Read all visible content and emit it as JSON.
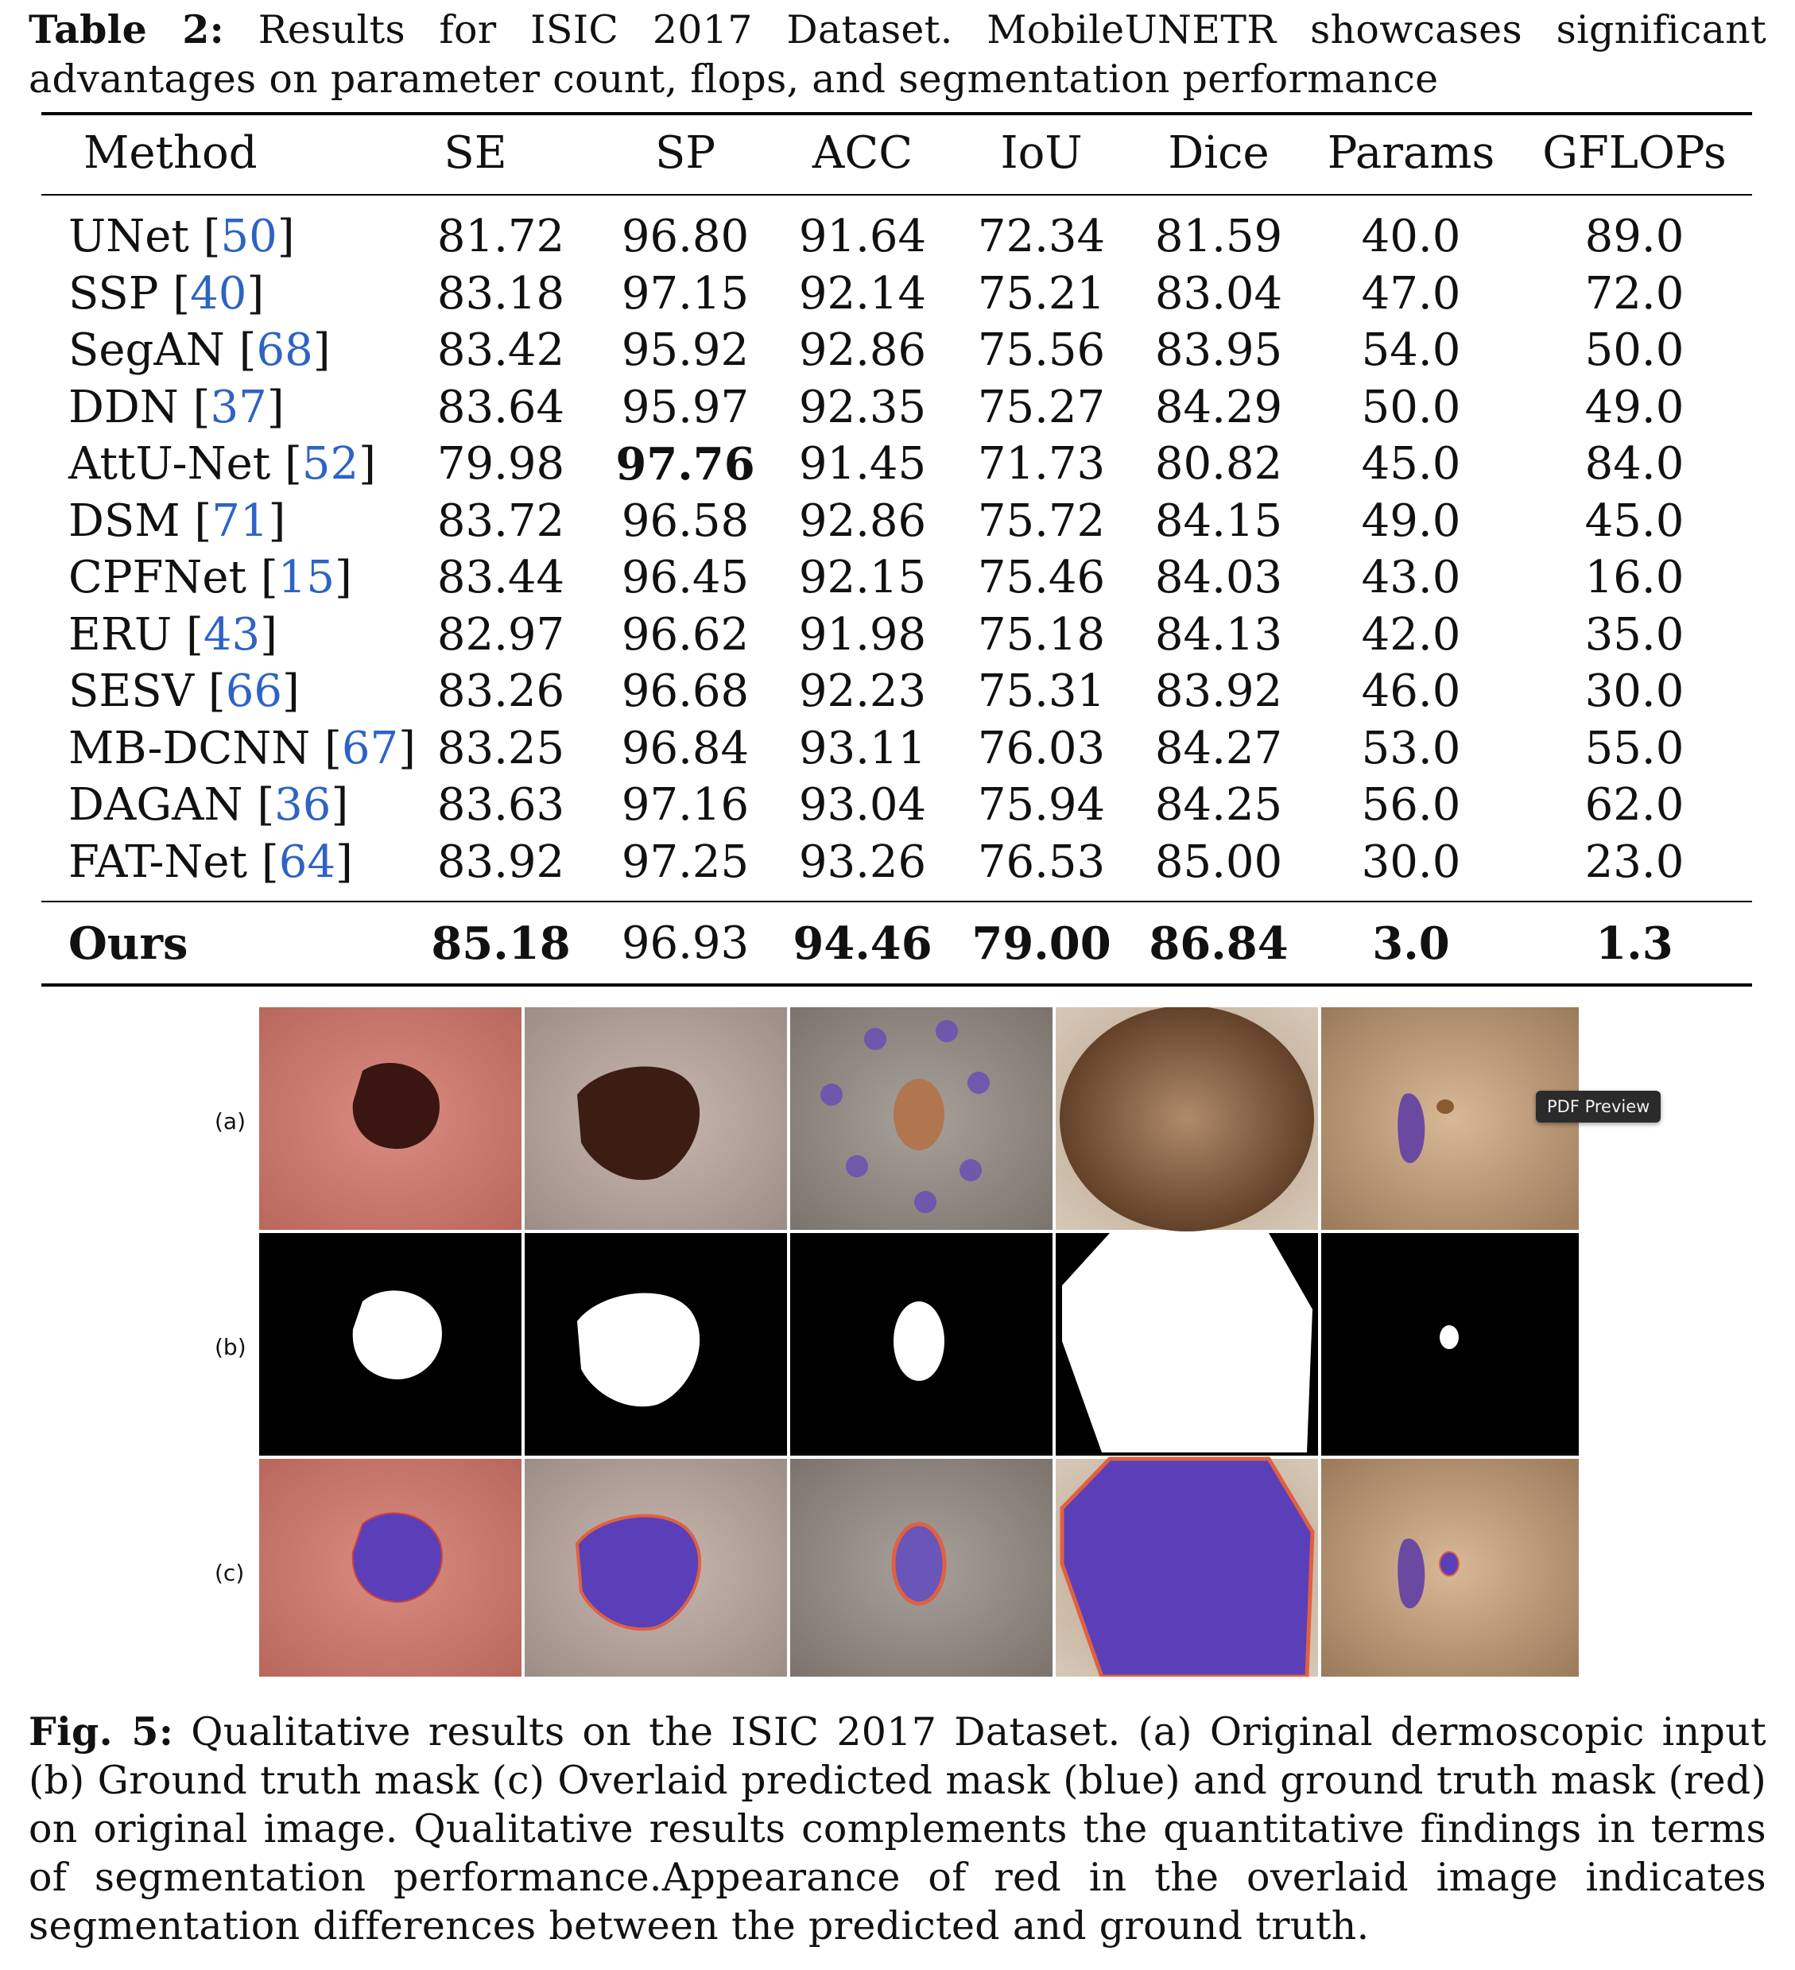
{
  "table_caption": {
    "label": "Table 2:",
    "text": "Results for ISIC 2017 Dataset. MobileUNETR showcases significant advantages on parameter count, flops, and segmentation performance"
  },
  "table": {
    "headers": [
      "Method",
      "SE",
      "SP",
      "ACC",
      "IoU",
      "Dice",
      "Params",
      "GFLOPs"
    ],
    "rows": [
      {
        "method": "UNet",
        "ref": "50",
        "values": [
          "81.72",
          "96.80",
          "91.64",
          "72.34",
          "81.59",
          "40.0",
          "89.0"
        ]
      },
      {
        "method": "SSP",
        "ref": "40",
        "values": [
          "83.18",
          "97.15",
          "92.14",
          "75.21",
          "83.04",
          "47.0",
          "72.0"
        ]
      },
      {
        "method": "SegAN",
        "ref": "68",
        "values": [
          "83.42",
          "95.92",
          "92.86",
          "75.56",
          "83.95",
          "54.0",
          "50.0"
        ]
      },
      {
        "method": "DDN",
        "ref": "37",
        "values": [
          "83.64",
          "95.97",
          "92.35",
          "75.27",
          "84.29",
          "50.0",
          "49.0"
        ]
      },
      {
        "method": "AttU-Net",
        "ref": "52",
        "values": [
          "79.98",
          "97.76",
          "91.45",
          "71.73",
          "80.82",
          "45.0",
          "84.0"
        ]
      },
      {
        "method": "DSM",
        "ref": "71",
        "values": [
          "83.72",
          "96.58",
          "92.86",
          "75.72",
          "84.15",
          "49.0",
          "45.0"
        ]
      },
      {
        "method": "CPFNet",
        "ref": "15",
        "values": [
          "83.44",
          "96.45",
          "92.15",
          "75.46",
          "84.03",
          "43.0",
          "16.0"
        ]
      },
      {
        "method": "ERU",
        "ref": "43",
        "values": [
          "82.97",
          "96.62",
          "91.98",
          "75.18",
          "84.13",
          "42.0",
          "35.0"
        ]
      },
      {
        "method": "SESV",
        "ref": "66",
        "values": [
          "83.26",
          "96.68",
          "92.23",
          "75.31",
          "83.92",
          "46.0",
          "30.0"
        ]
      },
      {
        "method": "MB-DCNN",
        "ref": "67",
        "values": [
          "83.25",
          "96.84",
          "93.11",
          "76.03",
          "84.27",
          "53.0",
          "55.0"
        ]
      },
      {
        "method": "DAGAN",
        "ref": "36",
        "values": [
          "83.63",
          "97.16",
          "93.04",
          "75.94",
          "84.25",
          "56.0",
          "62.0"
        ]
      },
      {
        "method": "FAT-Net",
        "ref": "64",
        "values": [
          "83.92",
          "97.25",
          "93.26",
          "76.53",
          "85.00",
          "30.0",
          "23.0"
        ]
      }
    ],
    "ours": {
      "method": "Ours",
      "values": [
        "85.18",
        "96.93",
        "94.46",
        "79.00",
        "86.84",
        "3.0",
        "1.3"
      ]
    }
  },
  "figure": {
    "row_labels": [
      "(a)",
      "(b)",
      "(c)"
    ],
    "tooltip": "PDF Preview"
  },
  "figure_caption": {
    "label": "Fig. 5:",
    "text": "Qualitative results on the ISIC 2017 Dataset. (a) Original dermoscopic input (b) Ground truth mask (c) Overlaid predicted mask (blue) and ground truth mask (red) on original image. Qualitative results complements the quantitative findings in terms of segmentation performance.Appearance of red in the overlaid image indicates segmentation differences between the predicted and ground truth."
  }
}
